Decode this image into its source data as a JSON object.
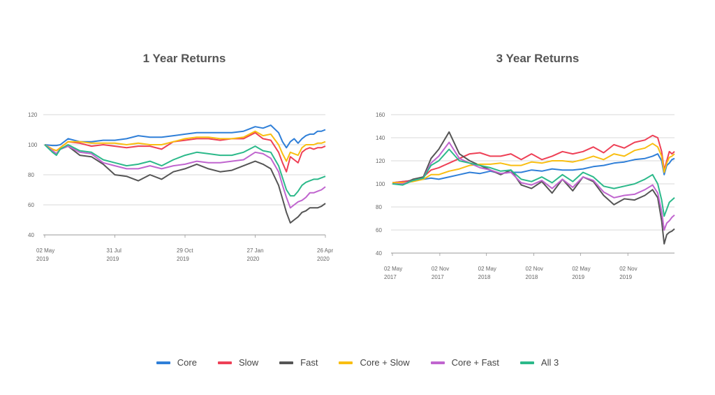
{
  "colors": {
    "Core": "#2f7fd8",
    "Slow": "#ee4056",
    "Fast": "#555555",
    "Core + Slow": "#f9be11",
    "Core + Fast": "#c065cf",
    "All 3": "#2cb98a"
  },
  "legend": [
    "Core",
    "Slow",
    "Fast",
    "Core + Slow",
    "Core + Fast",
    "All 3"
  ],
  "chart_data": [
    {
      "type": "line",
      "title": "1 Year Returns",
      "ylim": [
        40,
        120
      ],
      "yticks": [
        "40",
        "60",
        "80",
        "100",
        "120"
      ],
      "xlim": [
        0,
        360
      ],
      "xticks": [
        {
          "x": 0,
          "label1": "02 May",
          "label2": "2019"
        },
        {
          "x": 90,
          "label1": "31 Jul",
          "label2": "2019"
        },
        {
          "x": 180,
          "label1": "29 Oct",
          "label2": "2019"
        },
        {
          "x": 270,
          "label1": "27 Jan",
          "label2": "2020"
        },
        {
          "x": 360,
          "label1": "26 Apr",
          "label2": "2020"
        }
      ],
      "grid": true,
      "x": [
        0,
        10,
        15,
        20,
        30,
        45,
        60,
        75,
        90,
        105,
        120,
        135,
        150,
        165,
        180,
        195,
        210,
        225,
        240,
        255,
        270,
        280,
        290,
        300,
        305,
        310,
        315,
        320,
        325,
        330,
        335,
        340,
        345,
        350,
        355,
        360
      ],
      "series": [
        {
          "name": "Core",
          "values": [
            100,
            99.5,
            99.5,
            100,
            104,
            102,
            102,
            103,
            103,
            104,
            106,
            105,
            105,
            106,
            107,
            108,
            108,
            108,
            108,
            109,
            112,
            111,
            113,
            108,
            102,
            98,
            102,
            104,
            101,
            104,
            106,
            107,
            107,
            109,
            109,
            110
          ]
        },
        {
          "name": "Slow",
          "values": [
            100,
            97,
            96,
            98,
            102,
            101,
            99,
            100,
            99,
            98,
            99,
            99,
            97,
            102,
            103,
            104,
            104,
            103,
            104,
            104,
            108,
            104,
            103,
            95,
            88,
            82,
            92,
            90,
            88,
            95,
            97,
            98,
            97,
            98,
            98,
            99
          ]
        },
        {
          "name": "Fast",
          "values": [
            100,
            96,
            94,
            97,
            99,
            93,
            92,
            87,
            80,
            79,
            76,
            80,
            77,
            82,
            84,
            87,
            84,
            82,
            83,
            86,
            89,
            87,
            84,
            73,
            64,
            55,
            48,
            50,
            52,
            55,
            56,
            58,
            58,
            58,
            59,
            61
          ]
        },
        {
          "name": "Core + Slow",
          "values": [
            100,
            97,
            96,
            98,
            102,
            102,
            101,
            101,
            101,
            100,
            101,
            100,
            100,
            102,
            104,
            105,
            105,
            104,
            104,
            105,
            109,
            106,
            107,
            100,
            94,
            89,
            95,
            94,
            93,
            98,
            100,
            100,
            100,
            101,
            101,
            102
          ]
        },
        {
          "name": "Core + Fast",
          "values": [
            100,
            96,
            94,
            97,
            99,
            95,
            94,
            88,
            86,
            84,
            84,
            86,
            84,
            86,
            87,
            89,
            88,
            88,
            89,
            90,
            95,
            94,
            91,
            82,
            73,
            65,
            58,
            60,
            62,
            63,
            65,
            68,
            68,
            69,
            70,
            72
          ]
        },
        {
          "name": "All 3",
          "values": [
            100,
            95,
            93,
            97,
            100,
            96,
            95,
            90,
            88,
            86,
            87,
            89,
            86,
            90,
            93,
            95,
            94,
            93,
            93,
            95,
            99,
            96,
            95,
            86,
            78,
            70,
            66,
            66,
            69,
            73,
            75,
            76,
            77,
            77,
            78,
            79
          ]
        }
      ]
    },
    {
      "type": "line",
      "title": "3 Year Returns",
      "ylim": [
        40,
        160
      ],
      "yticks": [
        "40",
        "60",
        "80",
        "100",
        "120",
        "140",
        "160"
      ],
      "xlim": [
        0,
        1095
      ],
      "xticks": [
        {
          "x": 0,
          "label1": "02 May",
          "label2": "2017"
        },
        {
          "x": 184,
          "label1": "02 Nov",
          "label2": "2017"
        },
        {
          "x": 365,
          "label1": "02 May",
          "label2": "2018"
        },
        {
          "x": 549,
          "label1": "02 Nov",
          "label2": "2018"
        },
        {
          "x": 730,
          "label1": "02 May",
          "label2": "2019"
        },
        {
          "x": 914,
          "label1": "02 Nov",
          "label2": "2019"
        }
      ],
      "grid": true,
      "x": [
        0,
        40,
        80,
        120,
        150,
        180,
        220,
        260,
        300,
        340,
        380,
        420,
        460,
        500,
        540,
        580,
        620,
        660,
        700,
        740,
        780,
        820,
        860,
        900,
        940,
        980,
        1010,
        1030,
        1045,
        1055,
        1065,
        1075,
        1085,
        1095
      ],
      "series": [
        {
          "name": "Core",
          "values": [
            101,
            102,
            103,
            104,
            105,
            104,
            106,
            108,
            110,
            109,
            111,
            109,
            110,
            110,
            112,
            111,
            113,
            112,
            112,
            113,
            115,
            116,
            118,
            119,
            121,
            122,
            124,
            126,
            120,
            108,
            116,
            118,
            121,
            122
          ]
        },
        {
          "name": "Slow",
          "values": [
            101,
            102,
            103,
            106,
            112,
            114,
            118,
            122,
            126,
            127,
            124,
            124,
            126,
            121,
            126,
            121,
            124,
            128,
            126,
            128,
            132,
            127,
            134,
            131,
            136,
            138,
            142,
            140,
            128,
            112,
            120,
            128,
            126,
            128
          ]
        },
        {
          "name": "Fast",
          "values": [
            100,
            100,
            104,
            106,
            122,
            130,
            145,
            126,
            120,
            116,
            112,
            108,
            112,
            99,
            96,
            102,
            92,
            104,
            94,
            106,
            102,
            90,
            82,
            87,
            86,
            90,
            95,
            88,
            68,
            48,
            56,
            58,
            59,
            61
          ]
        },
        {
          "name": "Core + Slow",
          "values": [
            101,
            101,
            102,
            104,
            108,
            108,
            111,
            113,
            116,
            117,
            117,
            118,
            116,
            116,
            119,
            118,
            120,
            120,
            119,
            121,
            124,
            121,
            126,
            124,
            129,
            131,
            135,
            132,
            124,
            110,
            118,
            123,
            124,
            126
          ]
        },
        {
          "name": "Core + Fast",
          "values": [
            100,
            100,
            103,
            105,
            118,
            124,
            136,
            122,
            118,
            114,
            112,
            109,
            110,
            101,
            99,
            103,
            96,
            104,
            97,
            106,
            103,
            93,
            88,
            90,
            91,
            95,
            99,
            92,
            76,
            60,
            66,
            68,
            71,
            73
          ]
        },
        {
          "name": "All 3",
          "values": [
            100,
            99,
            103,
            105,
            116,
            120,
            130,
            120,
            118,
            116,
            114,
            111,
            112,
            104,
            102,
            106,
            101,
            108,
            102,
            110,
            106,
            98,
            96,
            98,
            100,
            104,
            108,
            100,
            86,
            72,
            78,
            84,
            86,
            88
          ]
        }
      ]
    }
  ]
}
